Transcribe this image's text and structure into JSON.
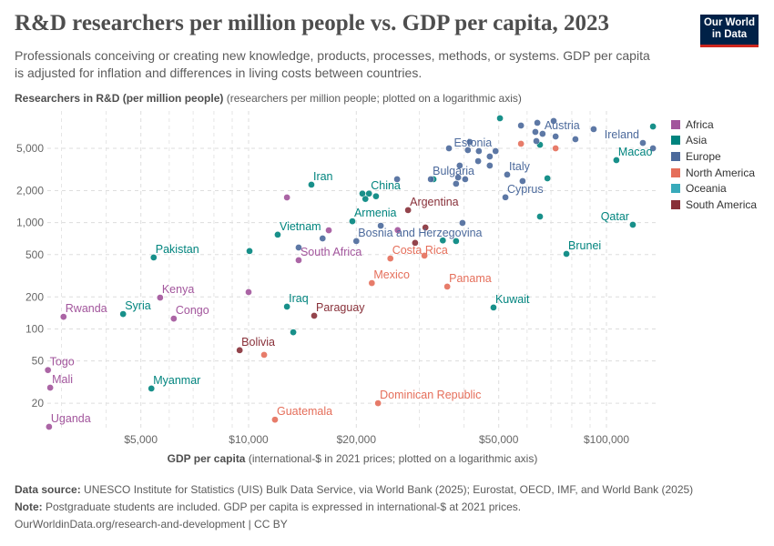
{
  "header": {
    "title": "R&D researchers per million people vs. GDP per capita, 2023",
    "subtitle": "Professionals conceiving or creating new knowledge, products, processes, methods, or systems. GDP per capita is adjusted for inflation and differences in living costs between countries.",
    "logo_text": "Our World in Data"
  },
  "chart_data": {
    "type": "scatter",
    "title": "R&D researchers per million people vs. GDP per capita, 2023",
    "ylabel_bold": "Researchers in R&D (per million people)",
    "ylabel_rest": " (researchers per million people; plotted on a logarithmic axis)",
    "xlabel_bold": "GDP per capita",
    "xlabel_rest": " (international-$ in 2021 prices; plotted on a logarithmic axis)",
    "x_scale": "log",
    "y_scale": "log",
    "xlim": [
      2600,
      140000
    ],
    "ylim": [
      11,
      10500
    ],
    "x_ticks": [
      {
        "v": 5000,
        "label": "$5,000"
      },
      {
        "v": 10000,
        "label": "$10,000"
      },
      {
        "v": 20000,
        "label": "$20,000"
      },
      {
        "v": 50000,
        "label": "$50,000"
      },
      {
        "v": 100000,
        "label": "$100,000"
      }
    ],
    "y_ticks": [
      {
        "v": 5000,
        "label": "5,000"
      },
      {
        "v": 2000,
        "label": "2,000"
      },
      {
        "v": 1000,
        "label": "1,000"
      },
      {
        "v": 500,
        "label": "500"
      },
      {
        "v": 200,
        "label": "200"
      },
      {
        "v": 100,
        "label": "100"
      },
      {
        "v": 50,
        "label": "50"
      },
      {
        "v": 20,
        "label": "20"
      }
    ],
    "grid": true,
    "legend_placement": "right",
    "series": [
      {
        "name": "Africa",
        "color": "#a2559c",
        "points": [
          {
            "x": 2750,
            "y": 41,
            "label": "Togo"
          },
          {
            "x": 2790,
            "y": 28,
            "label": "Mali"
          },
          {
            "x": 2770,
            "y": 12,
            "label": "Uganda"
          },
          {
            "x": 3040,
            "y": 130,
            "label": "Rwanda"
          },
          {
            "x": 5660,
            "y": 197,
            "label": "Kenya"
          },
          {
            "x": 6180,
            "y": 125,
            "label": "Congo"
          },
          {
            "x": 10000,
            "y": 222
          },
          {
            "x": 12800,
            "y": 1725
          },
          {
            "x": 16750,
            "y": 847
          },
          {
            "x": 13800,
            "y": 443,
            "label": "South Africa"
          },
          {
            "x": 26100,
            "y": 850
          }
        ]
      },
      {
        "name": "Asia",
        "color": "#00847e",
        "points": [
          {
            "x": 5430,
            "y": 470,
            "label": "Pakistan"
          },
          {
            "x": 10060,
            "y": 540
          },
          {
            "x": 12060,
            "y": 770,
            "label": "Vietnam"
          },
          {
            "x": 14980,
            "y": 2275,
            "label": "Iran"
          },
          {
            "x": 20800,
            "y": 1875
          },
          {
            "x": 21700,
            "y": 1875,
            "label": "China"
          },
          {
            "x": 21200,
            "y": 1670
          },
          {
            "x": 22700,
            "y": 1770
          },
          {
            "x": 19500,
            "y": 1030,
            "label": "Armenia"
          },
          {
            "x": 4460,
            "y": 138,
            "label": "Syria"
          },
          {
            "x": 12800,
            "y": 162,
            "label": "Iraq"
          },
          {
            "x": 13330,
            "y": 93
          },
          {
            "x": 5350,
            "y": 27.5,
            "label": "Myanmar"
          },
          {
            "x": 48350,
            "y": 159,
            "label": "Kuwait"
          },
          {
            "x": 118500,
            "y": 955,
            "label": "Qatar"
          },
          {
            "x": 77300,
            "y": 508,
            "label": "Brunei"
          },
          {
            "x": 106600,
            "y": 3870,
            "label": "Macao"
          },
          {
            "x": 134900,
            "y": 8020
          },
          {
            "x": 50400,
            "y": 9590
          },
          {
            "x": 65200,
            "y": 1140
          },
          {
            "x": 68400,
            "y": 2610
          },
          {
            "x": 65200,
            "y": 5400
          },
          {
            "x": 32860,
            "y": 2560
          },
          {
            "x": 38000,
            "y": 670
          },
          {
            "x": 34900,
            "y": 680
          }
        ]
      },
      {
        "name": "Europe",
        "color": "#4c6a9c",
        "points": [
          {
            "x": 57700,
            "y": 8190
          },
          {
            "x": 64100,
            "y": 8690
          },
          {
            "x": 71200,
            "y": 9040
          },
          {
            "x": 63300,
            "y": 7130
          },
          {
            "x": 66300,
            "y": 6850,
            "label": "Austria"
          },
          {
            "x": 72100,
            "y": 6460
          },
          {
            "x": 81900,
            "y": 6090
          },
          {
            "x": 92100,
            "y": 7570
          },
          {
            "x": 126400,
            "y": 5620,
            "label": "Ireland"
          },
          {
            "x": 134900,
            "y": 5000
          },
          {
            "x": 63700,
            "y": 5850
          },
          {
            "x": 41500,
            "y": 5740
          },
          {
            "x": 36300,
            "y": 5000
          },
          {
            "x": 41000,
            "y": 4810
          },
          {
            "x": 44000,
            "y": 4710
          },
          {
            "x": 49000,
            "y": 4710,
            "label": "Estonia"
          },
          {
            "x": 47200,
            "y": 4190
          },
          {
            "x": 43800,
            "y": 3790
          },
          {
            "x": 47200,
            "y": 3440
          },
          {
            "x": 38900,
            "y": 3440
          },
          {
            "x": 32300,
            "y": 2560,
            "label": "Bulgaria"
          },
          {
            "x": 38500,
            "y": 2660
          },
          {
            "x": 40300,
            "y": 2560
          },
          {
            "x": 38000,
            "y": 2320
          },
          {
            "x": 52800,
            "y": 2830,
            "label": "Italy"
          },
          {
            "x": 58300,
            "y": 2460
          },
          {
            "x": 52200,
            "y": 1730,
            "label": "Cyprus"
          },
          {
            "x": 26000,
            "y": 2560
          },
          {
            "x": 39600,
            "y": 993
          },
          {
            "x": 20000,
            "y": 670,
            "label": "Bosnia and Herzegovina"
          },
          {
            "x": 23400,
            "y": 935
          },
          {
            "x": 16100,
            "y": 710
          },
          {
            "x": 13800,
            "y": 583
          }
        ]
      },
      {
        "name": "North America",
        "color": "#e56e5a",
        "points": [
          {
            "x": 24900,
            "y": 460,
            "label": "Costa Rica"
          },
          {
            "x": 31000,
            "y": 489
          },
          {
            "x": 22100,
            "y": 270,
            "label": "Mexico"
          },
          {
            "x": 35900,
            "y": 250,
            "label": "Panama"
          },
          {
            "x": 11050,
            "y": 57
          },
          {
            "x": 23000,
            "y": 20,
            "label": "Dominican Republic"
          },
          {
            "x": 11850,
            "y": 14,
            "label": "Guatemala"
          },
          {
            "x": 57700,
            "y": 5520
          },
          {
            "x": 72100,
            "y": 5000
          }
        ]
      },
      {
        "name": "Oceania",
        "color": "#38aaba",
        "points": []
      },
      {
        "name": "South America",
        "color": "#883039",
        "points": [
          {
            "x": 27900,
            "y": 1310,
            "label": "Argentina"
          },
          {
            "x": 31200,
            "y": 900
          },
          {
            "x": 9440,
            "y": 63,
            "label": "Bolivia"
          },
          {
            "x": 15250,
            "y": 133,
            "label": "Paraguay"
          },
          {
            "x": 29200,
            "y": 645
          }
        ]
      }
    ]
  },
  "footer": {
    "source_label": "Data source:",
    "source_text": " UNESCO Institute for Statistics (UIS) Bulk Data Service, via World Bank (2025); Eurostat, OECD, IMF, and World Bank (2025)",
    "note_label": "Note:",
    "note_text": " Postgraduate students are included. GDP per capita is expressed in international-$ at 2021 prices.",
    "url_text": "OurWorldinData.org/research-and-development | CC BY"
  }
}
